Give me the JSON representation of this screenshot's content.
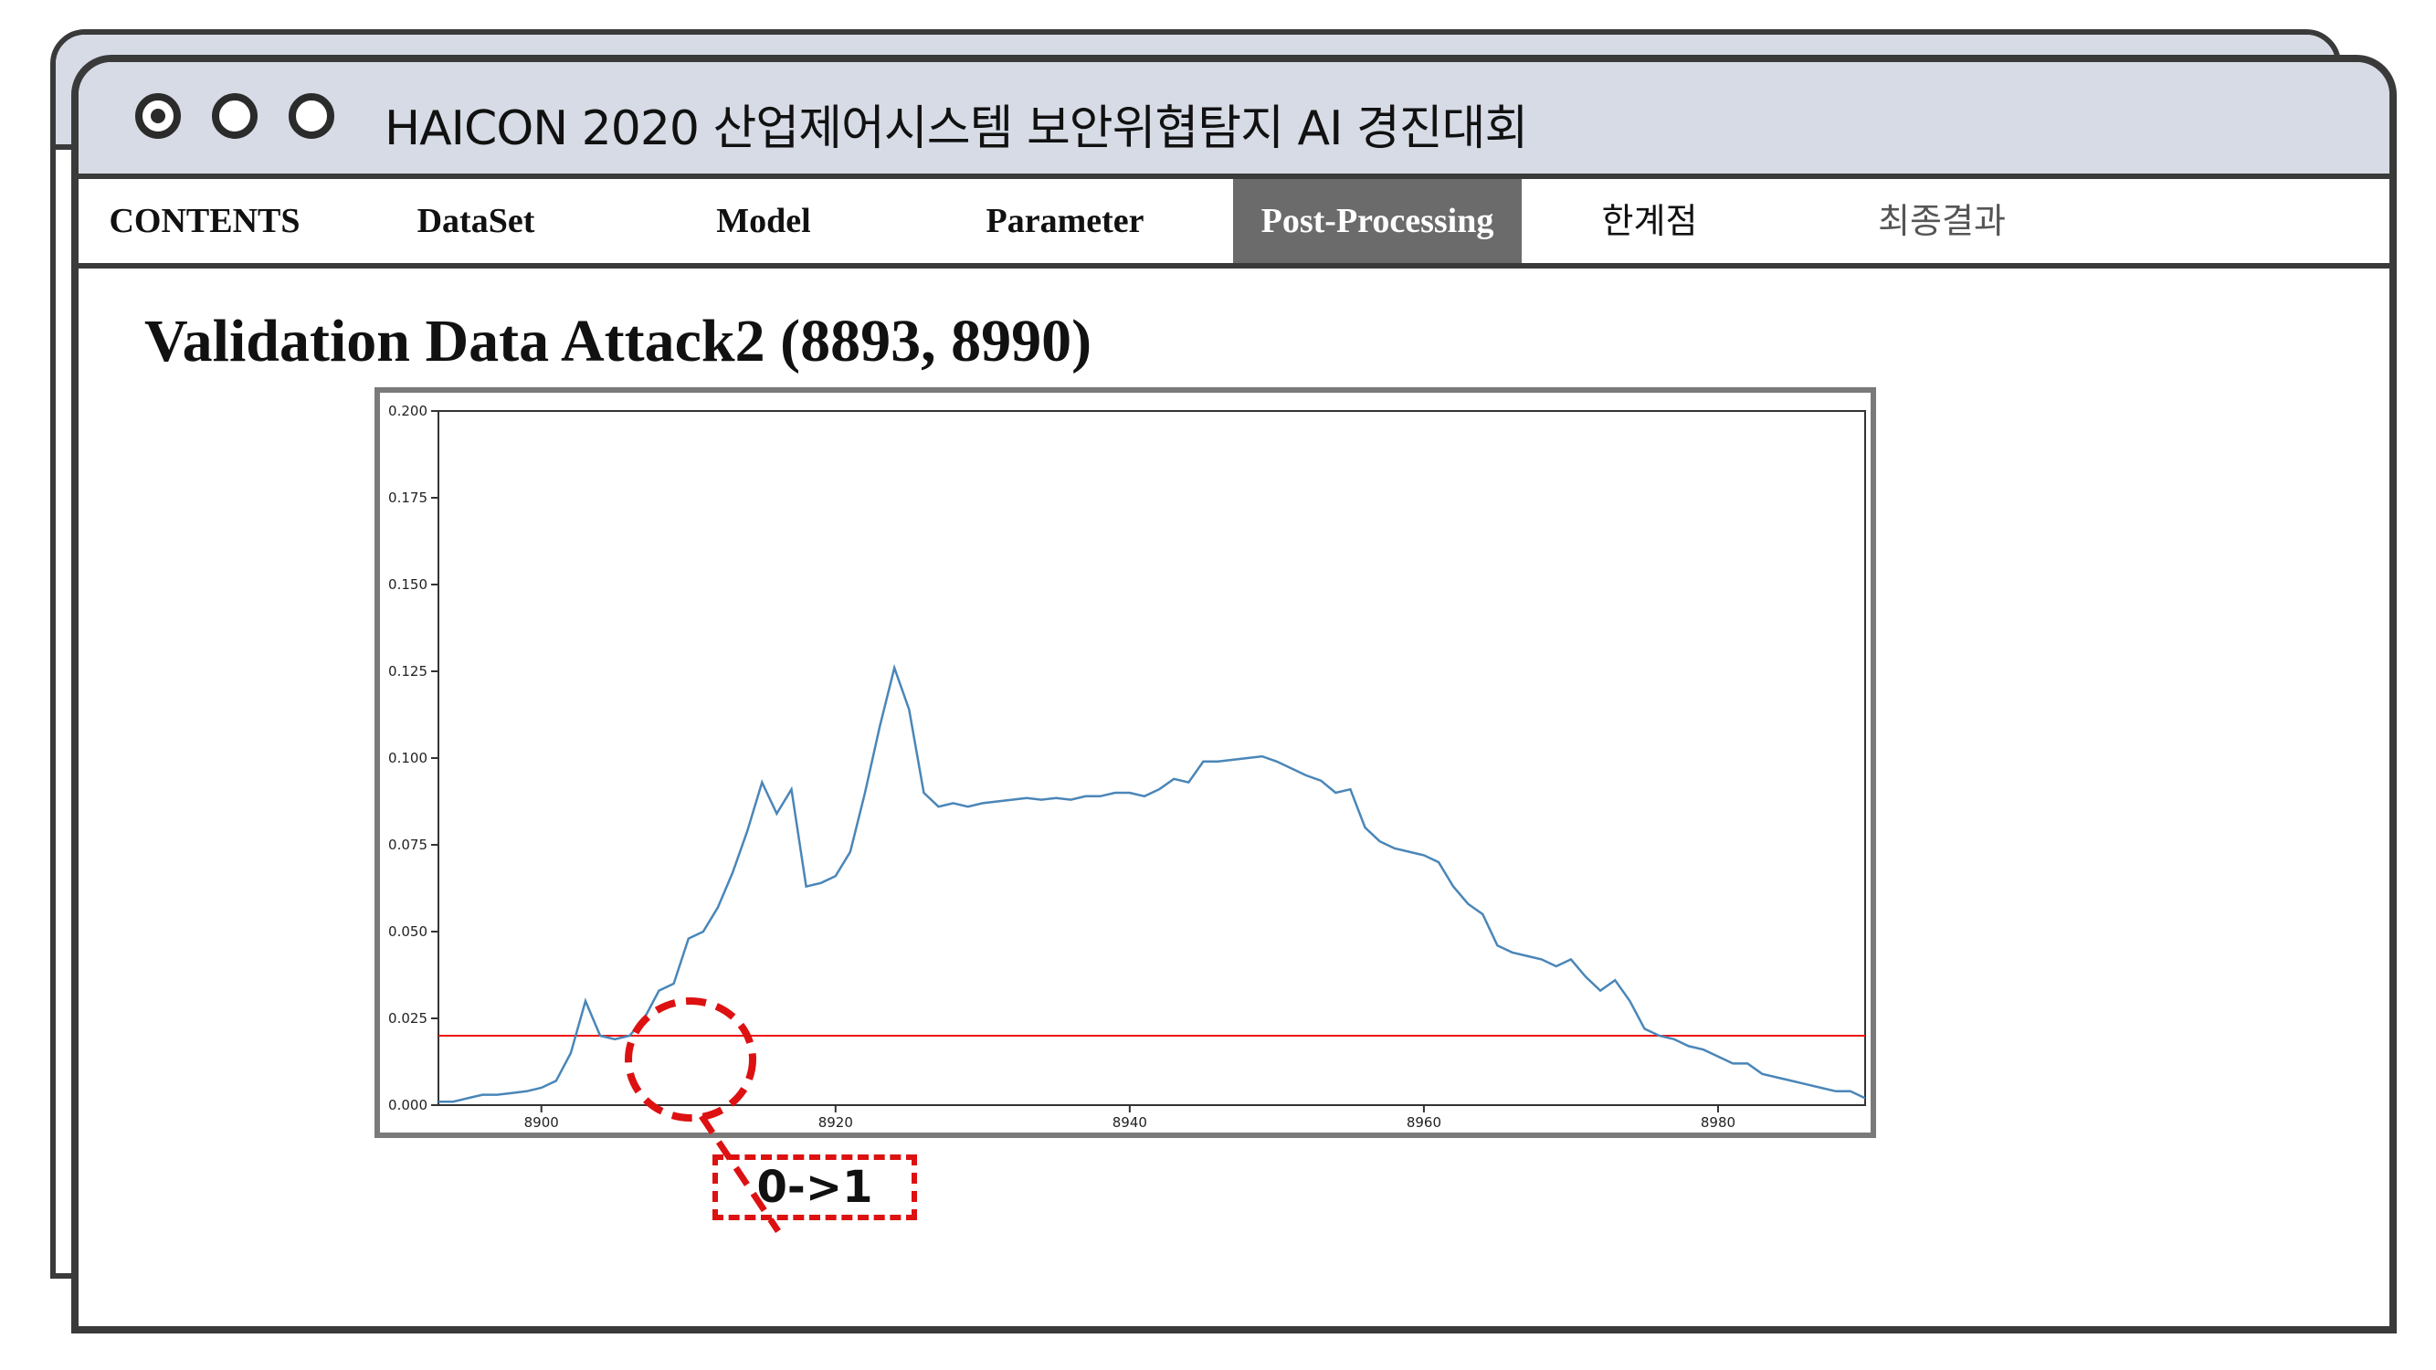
{
  "window": {
    "title": "HAICON 2020 산업제어시스템 보안위협탐지 AI 경진대회"
  },
  "nav": {
    "items": [
      {
        "label": "CONTENTS"
      },
      {
        "label": "DataSet"
      },
      {
        "label": "Model"
      },
      {
        "label": "Parameter"
      },
      {
        "label": "Post-Processing",
        "active": true
      },
      {
        "label": "한계점"
      },
      {
        "label": "최종결과"
      }
    ]
  },
  "page": {
    "title": "Validation Data Attack2 (8893, 8990)"
  },
  "annotation": {
    "label": "0->1"
  },
  "chart_data": {
    "type": "line",
    "title": "",
    "xlabel": "",
    "ylabel": "",
    "xlim": [
      8893,
      8990
    ],
    "ylim": [
      0,
      0.2
    ],
    "x_ticks": [
      "8900",
      "8920",
      "8940",
      "8960",
      "8980"
    ],
    "y_ticks": [
      "0.000",
      "0.025",
      "0.050",
      "0.075",
      "0.100",
      "0.125",
      "0.150",
      "0.175",
      "0.200"
    ],
    "grid": false,
    "line_color": "#4a86b8",
    "threshold": {
      "value": 0.02,
      "color": "#e11"
    },
    "series": [
      {
        "values": [
          [
            8893,
            0.001
          ],
          [
            8894,
            0.001
          ],
          [
            8895,
            0.002
          ],
          [
            8896,
            0.003
          ],
          [
            8897,
            0.003
          ],
          [
            8898,
            0.0035
          ],
          [
            8899,
            0.004
          ],
          [
            8900,
            0.005
          ],
          [
            8901,
            0.007
          ],
          [
            8902,
            0.015
          ],
          [
            8903,
            0.03
          ],
          [
            8904,
            0.02
          ],
          [
            8905,
            0.019
          ],
          [
            8906,
            0.02
          ],
          [
            8907,
            0.025
          ],
          [
            8908,
            0.033
          ],
          [
            8909,
            0.035
          ],
          [
            8910,
            0.048
          ],
          [
            8911,
            0.05
          ],
          [
            8912,
            0.057
          ],
          [
            8913,
            0.067
          ],
          [
            8914,
            0.079
          ],
          [
            8915,
            0.093
          ],
          [
            8916,
            0.084
          ],
          [
            8917,
            0.091
          ],
          [
            8918,
            0.063
          ],
          [
            8919,
            0.064
          ],
          [
            8920,
            0.066
          ],
          [
            8921,
            0.073
          ],
          [
            8922,
            0.09
          ],
          [
            8923,
            0.109
          ],
          [
            8924,
            0.126
          ],
          [
            8925,
            0.114
          ],
          [
            8926,
            0.09
          ],
          [
            8927,
            0.086
          ],
          [
            8928,
            0.087
          ],
          [
            8929,
            0.086
          ],
          [
            8930,
            0.087
          ],
          [
            8931,
            0.0875
          ],
          [
            8932,
            0.088
          ],
          [
            8933,
            0.0885
          ],
          [
            8934,
            0.088
          ],
          [
            8935,
            0.0885
          ],
          [
            8936,
            0.088
          ],
          [
            8937,
            0.089
          ],
          [
            8938,
            0.089
          ],
          [
            8939,
            0.09
          ],
          [
            8940,
            0.09
          ],
          [
            8941,
            0.089
          ],
          [
            8942,
            0.091
          ],
          [
            8943,
            0.094
          ],
          [
            8944,
            0.093
          ],
          [
            8945,
            0.099
          ],
          [
            8946,
            0.099
          ],
          [
            8947,
            0.0995
          ],
          [
            8948,
            0.1
          ],
          [
            8949,
            0.1005
          ],
          [
            8950,
            0.099
          ],
          [
            8951,
            0.097
          ],
          [
            8952,
            0.095
          ],
          [
            8953,
            0.0935
          ],
          [
            8954,
            0.09
          ],
          [
            8955,
            0.091
          ],
          [
            8956,
            0.08
          ],
          [
            8957,
            0.076
          ],
          [
            8958,
            0.074
          ],
          [
            8959,
            0.073
          ],
          [
            8960,
            0.072
          ],
          [
            8961,
            0.07
          ],
          [
            8962,
            0.063
          ],
          [
            8963,
            0.058
          ],
          [
            8964,
            0.055
          ],
          [
            8965,
            0.046
          ],
          [
            8966,
            0.044
          ],
          [
            8967,
            0.043
          ],
          [
            8968,
            0.042
          ],
          [
            8969,
            0.04
          ],
          [
            8970,
            0.042
          ],
          [
            8971,
            0.037
          ],
          [
            8972,
            0.033
          ],
          [
            8973,
            0.036
          ],
          [
            8974,
            0.03
          ],
          [
            8975,
            0.022
          ],
          [
            8976,
            0.02
          ],
          [
            8977,
            0.019
          ],
          [
            8978,
            0.017
          ],
          [
            8979,
            0.016
          ],
          [
            8980,
            0.014
          ],
          [
            8981,
            0.012
          ],
          [
            8982,
            0.012
          ],
          [
            8983,
            0.009
          ],
          [
            8984,
            0.008
          ],
          [
            8985,
            0.007
          ],
          [
            8986,
            0.006
          ],
          [
            8987,
            0.005
          ],
          [
            8988,
            0.004
          ],
          [
            8989,
            0.004
          ],
          [
            8990,
            0.002
          ]
        ]
      }
    ]
  }
}
